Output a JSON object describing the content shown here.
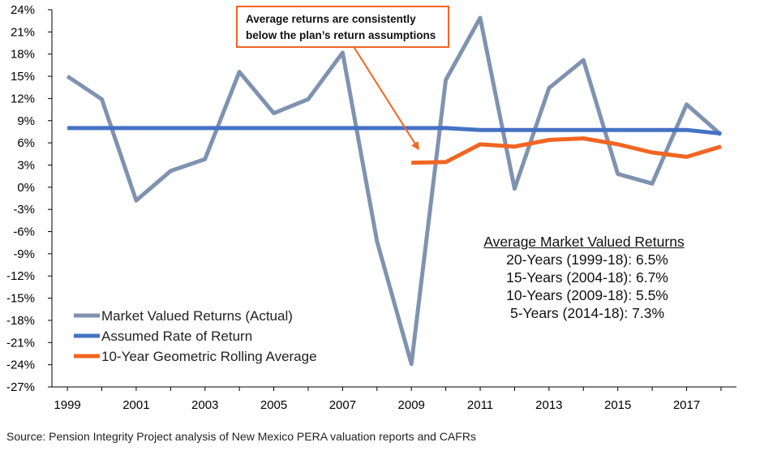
{
  "chart_data": {
    "type": "line",
    "x": [
      1999,
      2000,
      2001,
      2002,
      2003,
      2004,
      2005,
      2006,
      2007,
      2008,
      2009,
      2010,
      2011,
      2012,
      2013,
      2014,
      2015,
      2016,
      2017,
      2018
    ],
    "x_tick_labels": [
      "1999",
      "2001",
      "2003",
      "2005",
      "2007",
      "2009",
      "2011",
      "2013",
      "2015",
      "2017"
    ],
    "y_tick_labels": [
      "24%",
      "21%",
      "18%",
      "15%",
      "12%",
      "9%",
      "6%",
      "3%",
      "0%",
      "-3%",
      "-6%",
      "-9%",
      "-12%",
      "-15%",
      "-18%",
      "-21%",
      "-24%",
      "-27%"
    ],
    "ylim": [
      -27,
      24
    ],
    "series": [
      {
        "name": "Market Valued Returns (Actual)",
        "color": "#7f93b0",
        "x": [
          1999,
          2000,
          2001,
          2002,
          2003,
          2004,
          2005,
          2006,
          2007,
          2008,
          2009,
          2010,
          2011,
          2012,
          2013,
          2014,
          2015,
          2016,
          2017,
          2018
        ],
        "values": [
          15.0,
          11.9,
          -1.8,
          2.2,
          3.8,
          15.6,
          10.0,
          11.9,
          18.2,
          -7.3,
          -23.9,
          14.5,
          22.9,
          -0.2,
          13.4,
          17.2,
          1.8,
          0.5,
          11.2,
          7.1
        ]
      },
      {
        "name": "Assumed Rate of Return",
        "color": "#4472c4",
        "x": [
          1999,
          2000,
          2001,
          2002,
          2003,
          2004,
          2005,
          2006,
          2007,
          2008,
          2009,
          2010,
          2011,
          2012,
          2013,
          2014,
          2015,
          2016,
          2017,
          2018
        ],
        "values": [
          8.0,
          8.0,
          8.0,
          8.0,
          8.0,
          8.0,
          8.0,
          8.0,
          8.0,
          8.0,
          8.0,
          8.0,
          7.75,
          7.75,
          7.75,
          7.75,
          7.75,
          7.75,
          7.75,
          7.25
        ]
      },
      {
        "name": "10-Year Geometric Rolling Average",
        "color": "#f26522",
        "x": [
          2009,
          2010,
          2011,
          2012,
          2013,
          2014,
          2015,
          2016,
          2017,
          2018
        ],
        "values": [
          3.3,
          3.4,
          5.8,
          5.5,
          6.4,
          6.6,
          5.8,
          4.7,
          4.1,
          5.5
        ]
      }
    ],
    "annotation": {
      "line1": "Average returns  are consistently",
      "line2": "below the plan’s return assumptions"
    },
    "stats": {
      "title": "Average Market Valued Returns",
      "lines": [
        "20-Years (1999-18): 6.5%",
        "15-Years (2004-18): 6.7%",
        "10-Years (2009-18): 5.5%",
        "5-Years (2014-18): 7.3%"
      ]
    },
    "legend_position": "bottom-left"
  },
  "source": "Source: Pension Integrity Project analysis of New Mexico PERA valuation reports and CAFRs"
}
